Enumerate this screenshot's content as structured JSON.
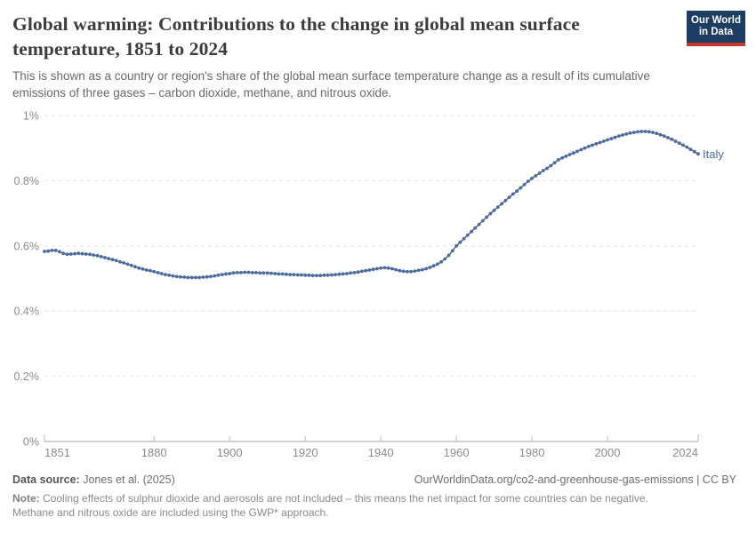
{
  "header": {
    "title": "Global warming: Contributions to the change in global mean surface temperature, 1851 to 2024",
    "subtitle": "This is shown as a country or region's share of the global mean surface temperature change as a result of its cumulative emissions of three gases – carbon dioxide, methane, and nitrous oxide.",
    "logo": {
      "line1": "Our World",
      "line2": "in Data",
      "bg_color": "#1d3d63",
      "accent_color": "#c0392b"
    }
  },
  "chart_data": {
    "type": "line",
    "title": "Global warming: Contributions to the change in global mean surface temperature, 1851 to 2024",
    "unit": "%",
    "xlim": [
      1851,
      2024
    ],
    "ylim": [
      0,
      1
    ],
    "grid": "horizontal-dashed",
    "legend_position": "label-at-line-end",
    "x_ticks": [
      {
        "v": 1851,
        "label": "1851"
      },
      {
        "v": 1880,
        "label": "1880"
      },
      {
        "v": 1900,
        "label": "1900"
      },
      {
        "v": 1920,
        "label": "1920"
      },
      {
        "v": 1940,
        "label": "1940"
      },
      {
        "v": 1960,
        "label": "1960"
      },
      {
        "v": 1980,
        "label": "1980"
      },
      {
        "v": 2000,
        "label": "2000"
      },
      {
        "v": 2024,
        "label": "2024"
      }
    ],
    "y_ticks": [
      {
        "v": 0,
        "label": "0%"
      },
      {
        "v": 0.2,
        "label": "0.2%"
      },
      {
        "v": 0.4,
        "label": "0.4%"
      },
      {
        "v": 0.6,
        "label": "0.6%"
      },
      {
        "v": 0.8,
        "label": "0.8%"
      },
      {
        "v": 1,
        "label": "1%"
      }
    ],
    "series": [
      {
        "name": "Italy",
        "color": "#4c6a9c",
        "x_start_year": 1851,
        "x_step": 1,
        "values": [
          0.583,
          0.584,
          0.586,
          0.586,
          0.582,
          0.577,
          0.574,
          0.575,
          0.576,
          0.577,
          0.576,
          0.575,
          0.574,
          0.572,
          0.57,
          0.567,
          0.564,
          0.561,
          0.558,
          0.555,
          0.551,
          0.548,
          0.544,
          0.54,
          0.536,
          0.532,
          0.529,
          0.526,
          0.524,
          0.521,
          0.518,
          0.515,
          0.512,
          0.51,
          0.508,
          0.506,
          0.505,
          0.504,
          0.503,
          0.503,
          0.503,
          0.503,
          0.504,
          0.505,
          0.506,
          0.508,
          0.51,
          0.512,
          0.514,
          0.515,
          0.517,
          0.518,
          0.518,
          0.519,
          0.519,
          0.518,
          0.518,
          0.517,
          0.517,
          0.517,
          0.516,
          0.515,
          0.514,
          0.514,
          0.513,
          0.512,
          0.512,
          0.511,
          0.511,
          0.51,
          0.51,
          0.509,
          0.509,
          0.509,
          0.51,
          0.51,
          0.511,
          0.512,
          0.513,
          0.514,
          0.515,
          0.517,
          0.518,
          0.52,
          0.522,
          0.524,
          0.526,
          0.528,
          0.53,
          0.532,
          0.533,
          0.532,
          0.53,
          0.527,
          0.524,
          0.522,
          0.521,
          0.521,
          0.523,
          0.525,
          0.527,
          0.53,
          0.534,
          0.539,
          0.544,
          0.551,
          0.56,
          0.571,
          0.585,
          0.6,
          0.611,
          0.622,
          0.633,
          0.644,
          0.655,
          0.666,
          0.677,
          0.688,
          0.699,
          0.709,
          0.719,
          0.729,
          0.739,
          0.749,
          0.759,
          0.768,
          0.778,
          0.788,
          0.798,
          0.807,
          0.815,
          0.823,
          0.831,
          0.838,
          0.846,
          0.855,
          0.864,
          0.87,
          0.875,
          0.88,
          0.885,
          0.89,
          0.895,
          0.9,
          0.905,
          0.909,
          0.913,
          0.917,
          0.921,
          0.925,
          0.929,
          0.933,
          0.937,
          0.94,
          0.943,
          0.946,
          0.948,
          0.95,
          0.951,
          0.951,
          0.95,
          0.948,
          0.945,
          0.941,
          0.937,
          0.932,
          0.927,
          0.921,
          0.915,
          0.909,
          0.903,
          0.896,
          0.889,
          0.882
        ]
      }
    ],
    "colors": {
      "line": "#4c6a9c",
      "gridline": "#e0e0e0",
      "axis": "#a6a6a6",
      "tick_label": "#8c8c8c"
    }
  },
  "footer": {
    "source_label": "Data source:",
    "source_value": "Jones et al. (2025)",
    "attribution": "OurWorldinData.org/co2-and-greenhouse-gas-emissions | CC BY",
    "note_label": "Note:",
    "note_text": "Cooling effects of sulphur dioxide and aerosols are not included – this means the net impact for some countries can be negative. Methane and nitrous oxide are included using the GWP* approach."
  }
}
